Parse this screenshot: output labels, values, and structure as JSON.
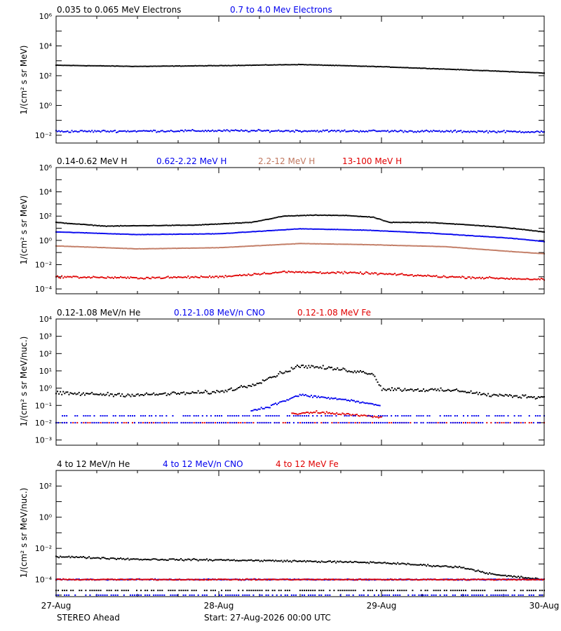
{
  "colors": {
    "black": "#000000",
    "blue": "#0000ee",
    "tan": "#c07860",
    "red": "#e00000"
  },
  "footer": {
    "spacecraft": "STEREO Ahead",
    "start_label": "Start: 27-Aug-2026 00:00 UTC"
  },
  "chart_data": [
    {
      "type": "scatter",
      "scale": "log",
      "x_ticks": [
        "27-Aug",
        "28-Aug",
        "29-Aug",
        "30-Aug"
      ],
      "xlim": [
        0,
        3
      ],
      "ylim": [
        0.003,
        1000000
      ],
      "ylabel": "1/(cm² s sr MeV)",
      "y_ticks": [
        {
          "exp": -2,
          "label": "10⁻²"
        },
        {
          "exp": 0,
          "label": "10⁰"
        },
        {
          "exp": 2,
          "label": "10²"
        },
        {
          "exp": 4,
          "label": "10⁴"
        },
        {
          "exp": 6,
          "label": "10⁶"
        }
      ],
      "series": [
        {
          "name": "0.035 to 0.065 MeV Electrons",
          "color": "black",
          "scatter": 0.02,
          "points": [
            [
              0,
              500
            ],
            [
              0.5,
              420
            ],
            [
              1.0,
              470
            ],
            [
              1.5,
              560
            ],
            [
              2.0,
              400
            ],
            [
              2.5,
              250
            ],
            [
              3.0,
              150
            ]
          ]
        },
        {
          "name": "0.7 to 4.0 Mev Electrons",
          "color": "blue",
          "scatter": 0.1,
          "points": [
            [
              0,
              0.018
            ],
            [
              1.0,
              0.02
            ],
            [
              2.0,
              0.019
            ],
            [
              3.0,
              0.017
            ]
          ]
        }
      ]
    },
    {
      "type": "scatter",
      "scale": "log",
      "x_ticks": [
        "27-Aug",
        "28-Aug",
        "29-Aug",
        "30-Aug"
      ],
      "xlim": [
        0,
        3
      ],
      "ylim": [
        4e-05,
        1000000
      ],
      "ylabel": "1/(cm² s sr MeV)",
      "y_ticks": [
        {
          "exp": -4,
          "label": "10⁻⁴"
        },
        {
          "exp": -2,
          "label": "10⁻²"
        },
        {
          "exp": 0,
          "label": "10⁰"
        },
        {
          "exp": 2,
          "label": "10²"
        },
        {
          "exp": 4,
          "label": "10⁴"
        },
        {
          "exp": 6,
          "label": "10⁶"
        }
      ],
      "series": [
        {
          "name": "0.14-0.62 MeV H",
          "color": "black",
          "scatter": 0.03,
          "points": [
            [
              0,
              30
            ],
            [
              0.3,
              15
            ],
            [
              0.85,
              18
            ],
            [
              1.2,
              30
            ],
            [
              1.4,
              100
            ],
            [
              1.6,
              120
            ],
            [
              1.8,
              110
            ],
            [
              1.95,
              80
            ],
            [
              2.05,
              30
            ],
            [
              2.3,
              30
            ],
            [
              2.65,
              15
            ],
            [
              2.8,
              10
            ],
            [
              3.0,
              5
            ]
          ]
        },
        {
          "name": "0.62-2.22 MeV H",
          "color": "blue",
          "scatter": 0.02,
          "points": [
            [
              0,
              5
            ],
            [
              0.5,
              3
            ],
            [
              1.0,
              3.5
            ],
            [
              1.5,
              9
            ],
            [
              1.9,
              7
            ],
            [
              2.3,
              4
            ],
            [
              2.65,
              2
            ],
            [
              2.8,
              1.5
            ],
            [
              3.0,
              0.8
            ]
          ]
        },
        {
          "name": "2.2-12 MeV H",
          "color": "tan",
          "scatter": 0.015,
          "points": [
            [
              0,
              0.35
            ],
            [
              0.5,
              0.2
            ],
            [
              1.0,
              0.25
            ],
            [
              1.5,
              0.55
            ],
            [
              1.9,
              0.45
            ],
            [
              2.4,
              0.3
            ],
            [
              2.8,
              0.12
            ],
            [
              3.0,
              0.08
            ]
          ]
        },
        {
          "name": "13-100 MeV H",
          "color": "red",
          "scatter": 0.12,
          "points": [
            [
              0,
              0.001
            ],
            [
              0.5,
              0.0008
            ],
            [
              1.0,
              0.001
            ],
            [
              1.4,
              0.0025
            ],
            [
              1.9,
              0.002
            ],
            [
              2.4,
              0.001
            ],
            [
              3.0,
              0.0006
            ]
          ]
        }
      ]
    },
    {
      "type": "scatter",
      "scale": "log",
      "x_ticks": [
        "27-Aug",
        "28-Aug",
        "29-Aug",
        "30-Aug"
      ],
      "xlim": [
        0,
        3
      ],
      "ylim": [
        0.0005,
        10000
      ],
      "ylabel": "1/(cm² s sr MeV/nuc.)",
      "y_ticks": [
        {
          "exp": -3,
          "label": "10⁻³"
        },
        {
          "exp": -2,
          "label": "10⁻²"
        },
        {
          "exp": -1,
          "label": "10⁻¹"
        },
        {
          "exp": 0,
          "label": "10⁰"
        },
        {
          "exp": 1,
          "label": "10¹"
        },
        {
          "exp": 2,
          "label": "10²"
        },
        {
          "exp": 3,
          "label": "10³"
        },
        {
          "exp": 4,
          "label": "10⁴"
        }
      ],
      "series": [
        {
          "name": "0.12-1.08 MeV/n He",
          "color": "black",
          "scatter": 0.15,
          "points": [
            [
              0,
              0.5
            ],
            [
              0.5,
              0.4
            ],
            [
              1.0,
              0.6
            ],
            [
              1.2,
              1.5
            ],
            [
              1.5,
              20
            ],
            [
              1.75,
              12
            ],
            [
              1.95,
              7
            ],
            [
              2.0,
              0.9
            ],
            [
              2.5,
              0.7
            ],
            [
              2.65,
              0.4
            ],
            [
              3.0,
              0.3
            ]
          ]
        },
        {
          "name": "0.12-1.08 MeV/n CNO",
          "color": "blue",
          "scatter": 0.1,
          "points": [
            [
              1.2,
              0.05
            ],
            [
              1.3,
              0.08
            ],
            [
              1.5,
              0.4
            ],
            [
              1.8,
              0.2
            ],
            [
              1.99,
              0.1
            ]
          ]
        },
        {
          "name": "0.12-1.08 MeV Fe",
          "color": "red",
          "scatter": 0.1,
          "points": [
            [
              1.45,
              0.03
            ],
            [
              1.6,
              0.04
            ],
            [
              1.8,
              0.03
            ],
            [
              2.0,
              0.02
            ]
          ]
        }
      ],
      "floor_series": [
        {
          "color": "blue",
          "value": 0.025,
          "x": [
            0,
            3
          ]
        },
        {
          "color": "red",
          "value": 0.01,
          "x": [
            0,
            3
          ]
        },
        {
          "color": "blue",
          "value": 0.01,
          "x": [
            0,
            3
          ]
        }
      ]
    },
    {
      "type": "scatter",
      "scale": "log",
      "x_ticks": [
        "27-Aug",
        "28-Aug",
        "29-Aug",
        "30-Aug"
      ],
      "xlim": [
        0,
        3
      ],
      "ylim": [
        8e-06,
        1000
      ],
      "ylabel": "1/(cm² s sr MeV/nuc.)",
      "y_ticks": [
        {
          "exp": -4,
          "label": "10⁻⁴"
        },
        {
          "exp": -2,
          "label": "10⁻²"
        },
        {
          "exp": 0,
          "label": "10⁰"
        },
        {
          "exp": 2,
          "label": "10²"
        }
      ],
      "series": [
        {
          "name": "4 to 12 MeV/n He",
          "color": "black",
          "scatter": 0.08,
          "points": [
            [
              0,
              0.003
            ],
            [
              0.5,
              0.002
            ],
            [
              1.0,
              0.0018
            ],
            [
              1.5,
              0.0015
            ],
            [
              2.0,
              0.0012
            ],
            [
              2.5,
              0.0006
            ],
            [
              2.7,
              0.0002
            ],
            [
              3.0,
              0.0001
            ]
          ]
        },
        {
          "name": "4 to 12 MeV/n CNO",
          "color": "blue",
          "scatter": 0.05,
          "points": [
            [
              0,
              0.0001
            ],
            [
              3.0,
              0.0001
            ]
          ]
        },
        {
          "name": "4 to 12 MeV Fe",
          "color": "red",
          "scatter": 0.05,
          "points": [
            [
              0,
              0.0001
            ],
            [
              3.0,
              0.0001
            ]
          ]
        }
      ],
      "floor_series": [
        {
          "color": "blue",
          "value": 1e-05,
          "x": [
            0,
            3
          ]
        },
        {
          "color": "black",
          "value": 2e-05,
          "x": [
            0,
            3
          ]
        }
      ]
    }
  ]
}
